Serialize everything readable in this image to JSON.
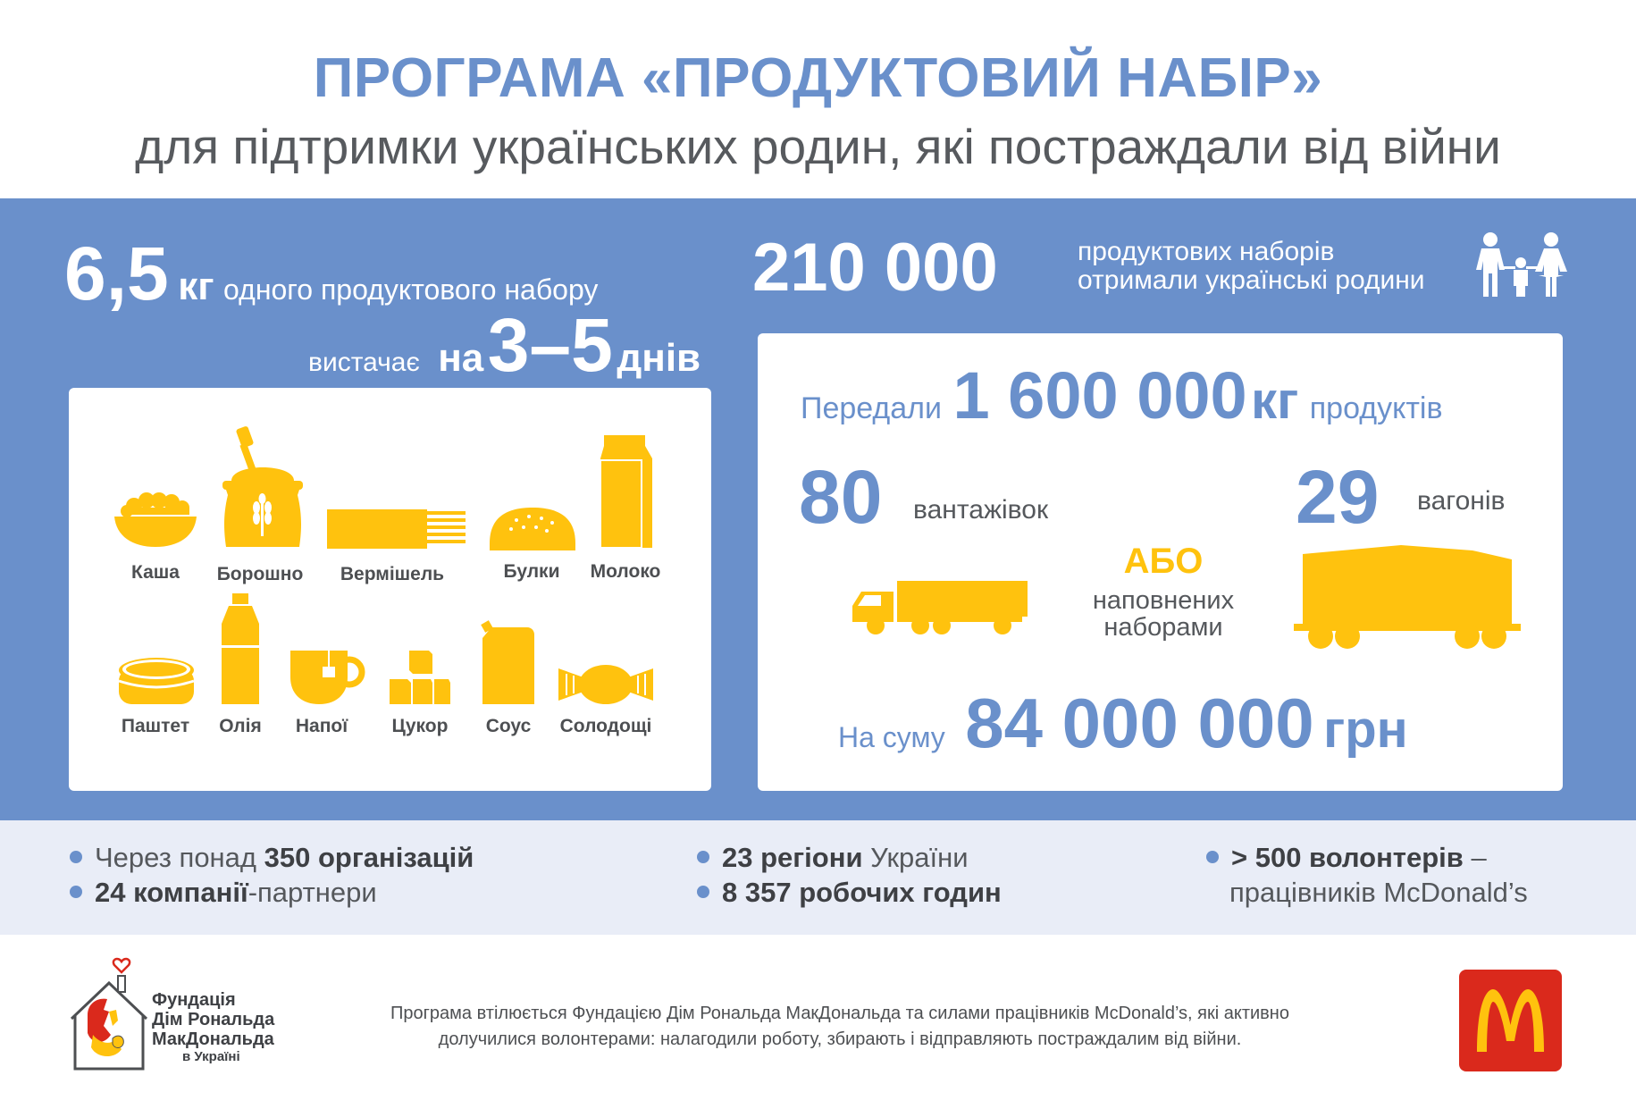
{
  "header": {
    "title": "ПРОГРАМА «ПРОДУКТОВИЙ НАБІР»",
    "subtitle": "для підтримки українських родин, які постраждали від війни"
  },
  "left": {
    "weight_value": "6,5",
    "weight_unit": "кг",
    "weight_text": "одного продуктового набору",
    "lasts_text": "вистачає",
    "lasts_prefix": "на",
    "lasts_value": "3–5",
    "lasts_unit": "днів",
    "products": [
      {
        "label": "Каша",
        "icon": "porridge-bowl-icon"
      },
      {
        "label": "Борошно",
        "icon": "flour-sack-icon"
      },
      {
        "label": "Вермішель",
        "icon": "vermicelli-icon"
      },
      {
        "label": "Булки",
        "icon": "bun-icon"
      },
      {
        "label": "Молоко",
        "icon": "milk-carton-icon"
      },
      {
        "label": "Паштет",
        "icon": "pate-can-icon"
      },
      {
        "label": "Олія",
        "icon": "oil-bottle-icon"
      },
      {
        "label": "Напої",
        "icon": "tea-cup-icon"
      },
      {
        "label": "Цукор",
        "icon": "sugar-cubes-icon"
      },
      {
        "label": "Соус",
        "icon": "sauce-pack-icon"
      },
      {
        "label": "Солодощі",
        "icon": "candy-icon"
      }
    ]
  },
  "right": {
    "sets_value": "210 000",
    "sets_line1": "продуктових наборів",
    "sets_line2": "отримали українські родини",
    "transferred_prefix": "Передали",
    "transferred_value": "1 600 000",
    "transferred_unit": "кг",
    "transferred_suffix": "продуктів",
    "trucks_value": "80",
    "trucks_label": "вантажівок",
    "wagons_value": "29",
    "wagons_label": "вагонів",
    "or_label": "АБО",
    "filled_line1": "наповнених",
    "filled_line2": "наборами",
    "sum_prefix": "На суму",
    "sum_value": "84 000 000",
    "sum_unit": "грн"
  },
  "stats": {
    "orgs_prefix": "Через понад",
    "orgs_bold": "350 організацій",
    "partners_bold": "24 компанії",
    "partners_suffix": "-партнери",
    "regions_bold": "23 регіони",
    "regions_suffix": "України",
    "hours_bold": "8 357 робочих годин",
    "volunteers_bold": "> 500 волонтерів",
    "volunteers_dash": "–",
    "volunteers_line2": "працівників McDonald’s"
  },
  "footer": {
    "foundation_line1": "Фундація",
    "foundation_line2": "Дім Рональда",
    "foundation_line3": "МакДональда",
    "foundation_line4": "в Україні",
    "text_line1": "Програма втілюється Фундацією Дім Рональда МакДональда та силами працівників McDonald’s, які активно",
    "text_line2": "долучилися волонтерами: налагодили роботу, збирають і відправляють постраждалим від війни."
  },
  "colors": {
    "accent_blue": "#6a90cb",
    "icon_yellow": "#ffc20e",
    "mcd_red": "#da291c",
    "text_gray": "#4d4f52"
  }
}
